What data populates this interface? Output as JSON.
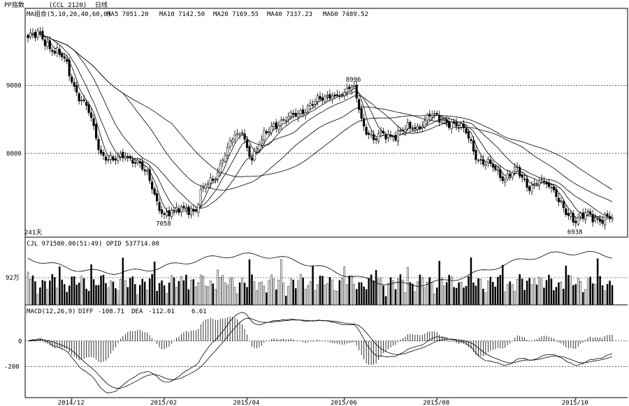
{
  "chart_data": {
    "type": "candlestick",
    "header": {
      "title": "PP指数",
      "code": "(CCL 2120)",
      "period": "日线"
    },
    "candles_count_label": "241天",
    "price_panel": {
      "ma_label": "MA组合(5,10,20,40,60,0)",
      "ma_values": [
        {
          "name": "MA5",
          "value": "7051.20"
        },
        {
          "name": "MA10",
          "value": "7142.50"
        },
        {
          "name": "MA20",
          "value": "7169.55"
        },
        {
          "name": "MA40",
          "value": "7337.23"
        },
        {
          "name": "MA60",
          "value": "7489.52"
        }
      ],
      "y_ticks": [
        9000,
        8000
      ],
      "ylim": [
        6850,
        9950
      ],
      "annotations": [
        {
          "text": "8996",
          "x": 134,
          "y": 8996
        },
        {
          "text": "7058",
          "x": 56,
          "y": 7058
        },
        {
          "text": "6938",
          "x": 225,
          "y": 6938
        }
      ],
      "anchors": [
        [
          0,
          9700
        ],
        [
          5,
          9780
        ],
        [
          10,
          9500
        ],
        [
          15,
          9400
        ],
        [
          20,
          8900
        ],
        [
          25,
          8600
        ],
        [
          30,
          8000
        ],
        [
          35,
          7900
        ],
        [
          40,
          7950
        ],
        [
          45,
          7900
        ],
        [
          50,
          7600
        ],
        [
          53,
          7300
        ],
        [
          56,
          7100
        ],
        [
          60,
          7150
        ],
        [
          65,
          7200
        ],
        [
          69,
          7150
        ],
        [
          72,
          7500
        ],
        [
          76,
          7600
        ],
        [
          80,
          7900
        ],
        [
          84,
          8200
        ],
        [
          88,
          8300
        ],
        [
          92,
          7900
        ],
        [
          96,
          8200
        ],
        [
          100,
          8400
        ],
        [
          105,
          8500
        ],
        [
          110,
          8550
        ],
        [
          115,
          8700
        ],
        [
          120,
          8800
        ],
        [
          125,
          8850
        ],
        [
          130,
          8900
        ],
        [
          134,
          8996
        ],
        [
          138,
          8400
        ],
        [
          142,
          8200
        ],
        [
          146,
          8300
        ],
        [
          150,
          8250
        ],
        [
          155,
          8350
        ],
        [
          160,
          8400
        ],
        [
          165,
          8550
        ],
        [
          170,
          8500
        ],
        [
          175,
          8450
        ],
        [
          180,
          8300
        ],
        [
          185,
          7900
        ],
        [
          190,
          7850
        ],
        [
          195,
          7600
        ],
        [
          200,
          7800
        ],
        [
          205,
          7500
        ],
        [
          210,
          7600
        ],
        [
          215,
          7500
        ],
        [
          220,
          7200
        ],
        [
          225,
          6980
        ],
        [
          230,
          7150
        ],
        [
          235,
          7000
        ],
        [
          240,
          7050
        ]
      ]
    },
    "volume_panel": {
      "label": "CJL 971500.00(51:49)",
      "oi_label": "OPID 537714.00",
      "y_tick": "92万"
    },
    "macd_panel": {
      "label": "MACD(12,26,9)",
      "diff_label": "DIFF",
      "diff_value": "-108.71",
      "dea_label": "DEA",
      "dea_value": "-112.01",
      "macd_value": "6.61",
      "y_ticks": [
        0,
        -200
      ],
      "ylim": [
        -420,
        200
      ]
    },
    "x_ticks": [
      {
        "label": "2014/12",
        "x": 18
      },
      {
        "label": "2015/02",
        "x": 56
      },
      {
        "label": "2015/04",
        "x": 90
      },
      {
        "label": "2015/06",
        "x": 130
      },
      {
        "label": "2015/08",
        "x": 168
      },
      {
        "label": "2015/10",
        "x": 225
      }
    ]
  }
}
